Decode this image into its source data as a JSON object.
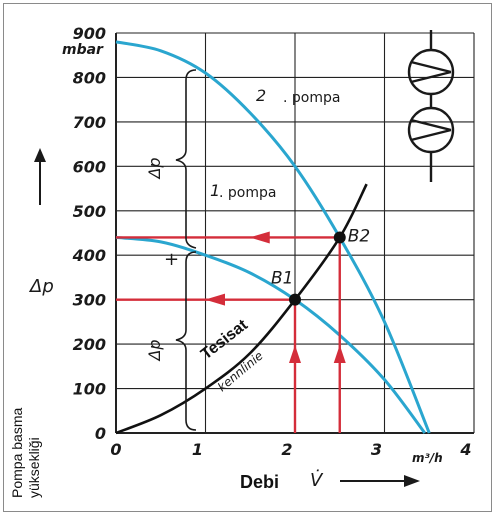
{
  "chart_data": {
    "type": "line",
    "title": "",
    "ylabel": "Δp",
    "y_unit": "mbar",
    "xlabel": "Debi",
    "x_symbol": "V̇",
    "x_unit": "m³/h",
    "side_label": [
      "Pompa basma",
      "yüksekliği"
    ],
    "xlim": [
      0,
      4
    ],
    "ylim": [
      0,
      900
    ],
    "x_ticks": [
      0,
      1,
      2,
      3,
      4
    ],
    "y_ticks": [
      0,
      100,
      200,
      300,
      400,
      500,
      600,
      700,
      800,
      900
    ],
    "grid": true,
    "series": [
      {
        "name": "2. pompa",
        "label": [
          ". pompa",
          "2"
        ],
        "color": "#2aa6cf",
        "x": [
          0,
          0.5,
          1,
          1.5,
          2,
          2.5,
          3,
          3.5,
          3.45
        ],
        "y": [
          880,
          860,
          810,
          720,
          600,
          440,
          250,
          0,
          0
        ]
      },
      {
        "name": "1. pompa",
        "label": [
          ". pompa",
          "1"
        ],
        "color": "#2aa6cf",
        "x": [
          0,
          0.5,
          1,
          1.5,
          2,
          2.5,
          3,
          3.45
        ],
        "y": [
          440,
          430,
          400,
          360,
          300,
          220,
          120,
          0
        ]
      },
      {
        "name": "Tesisat kennlinie",
        "label": [
          "Tesisat",
          "kennlinie"
        ],
        "color": "#111111",
        "x": [
          0,
          0.5,
          1,
          1.5,
          2,
          2.5,
          2.8
        ],
        "y": [
          0,
          40,
          100,
          180,
          300,
          440,
          560
        ]
      }
    ],
    "points": [
      {
        "label": "B1",
        "x": 2,
        "y": 300
      },
      {
        "label": "B2",
        "x": 2.5,
        "y": 440
      }
    ],
    "annotations": {
      "delta_p": "Δp",
      "plus": "+"
    }
  },
  "colors": {
    "red": "#d42d3a",
    "blue": "#2aa6cf",
    "grid": "#222222"
  }
}
